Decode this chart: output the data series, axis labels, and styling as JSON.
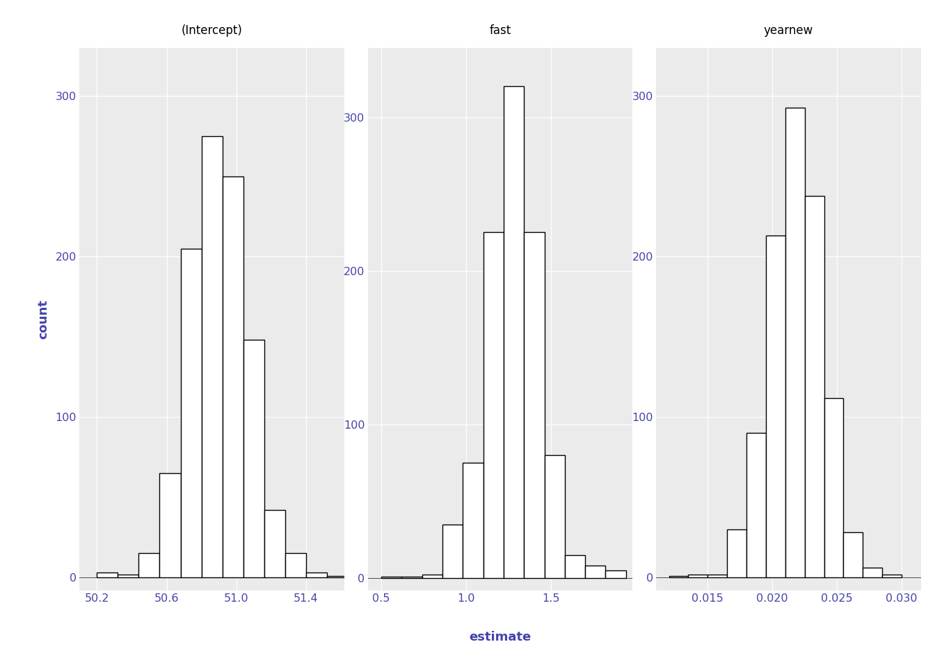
{
  "panels": [
    {
      "title": "(Intercept)",
      "bar_lefts": [
        50.2,
        50.32,
        50.44,
        50.56,
        50.68,
        50.8,
        50.92,
        51.04,
        51.16,
        51.28,
        51.4,
        51.52
      ],
      "bar_heights": [
        3,
        2,
        15,
        65,
        205,
        275,
        250,
        148,
        42,
        15,
        3,
        1
      ],
      "bar_width": 0.12,
      "xlim": [
        50.1,
        51.62
      ],
      "xticks": [
        50.2,
        50.6,
        51.0,
        51.4
      ],
      "xticklabels": [
        "50.2",
        "50.6",
        "51.0",
        "51.4"
      ],
      "ylim": [
        -8,
        330
      ],
      "yticks": [
        0,
        100,
        200,
        300
      ],
      "yticklabels": [
        "0",
        "100",
        "200",
        "300"
      ]
    },
    {
      "title": "fast",
      "bar_lefts": [
        0.5,
        0.62,
        0.74,
        0.86,
        0.98,
        1.1,
        1.22,
        1.34,
        1.46,
        1.58,
        1.7,
        1.82
      ],
      "bar_heights": [
        1,
        1,
        2,
        35,
        75,
        225,
        320,
        225,
        80,
        15,
        8,
        5
      ],
      "bar_width": 0.12,
      "xlim": [
        0.42,
        1.98
      ],
      "xticks": [
        0.5,
        1.0,
        1.5
      ],
      "xticklabels": [
        "0.5",
        "1.0",
        "1.5"
      ],
      "ylim": [
        -8,
        345
      ],
      "yticks": [
        0,
        100,
        200,
        300
      ],
      "yticklabels": [
        "0",
        "100",
        "200",
        "300"
      ]
    },
    {
      "title": "yearnew",
      "bar_lefts": [
        0.012,
        0.0135,
        0.015,
        0.0165,
        0.018,
        0.0195,
        0.021,
        0.0225,
        0.024,
        0.0255,
        0.027,
        0.0285
      ],
      "bar_heights": [
        1,
        2,
        2,
        30,
        90,
        213,
        293,
        238,
        112,
        28,
        6,
        2
      ],
      "bar_width": 0.0015,
      "xlim": [
        0.011,
        0.0315
      ],
      "xticks": [
        0.015,
        0.02,
        0.025,
        0.03
      ],
      "xticklabels": [
        "0.015",
        "0.020",
        "0.025",
        "0.030"
      ],
      "ylim": [
        -8,
        330
      ],
      "yticks": [
        0,
        100,
        200,
        300
      ],
      "yticklabels": [
        "0",
        "100",
        "200",
        "300"
      ]
    }
  ],
  "ylabel": "count",
  "xlabel": "estimate",
  "bg_color": "#EBEBEB",
  "bar_facecolor": "white",
  "bar_edgecolor": "black",
  "panel_header_color": "#D3D3D3",
  "title_color": "black",
  "axis_label_color": "#4444AA",
  "tick_color": "#4444AA",
  "grid_color": "white",
  "figure_bg": "#FFFFFF"
}
